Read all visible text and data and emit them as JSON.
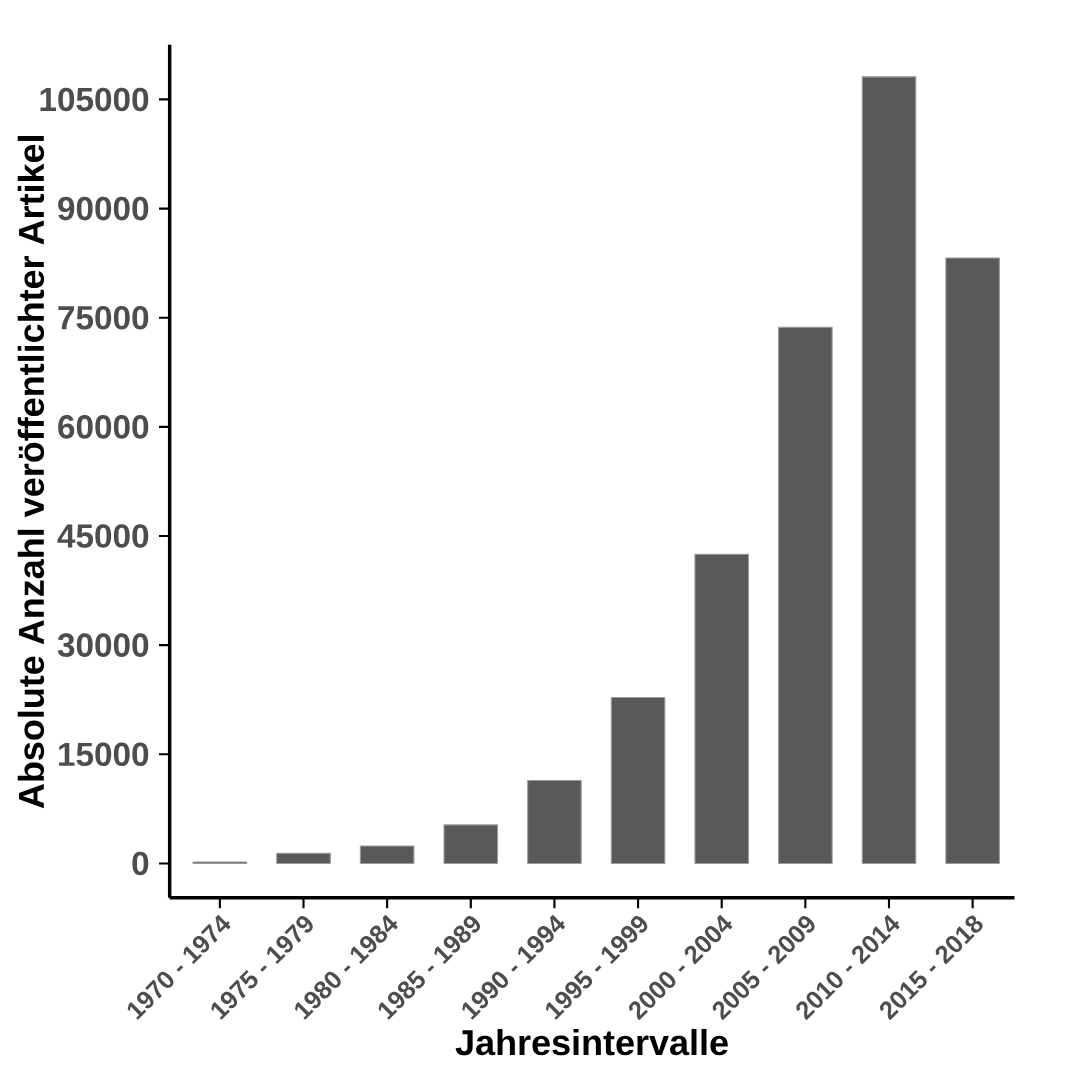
{
  "chart_data": {
    "type": "bar",
    "xlabel": "Jahresintervalle",
    "ylabel": "Absolute Anzahl veröffentlichter Artikel",
    "categories": [
      "1970 - 1974",
      "1975 - 1979",
      "1980 - 1984",
      "1985 - 1989",
      "1990 - 1994",
      "1995 - 1999",
      "2000 - 2004",
      "2005 - 2009",
      "2010 - 2014",
      "2015 - 2018"
    ],
    "values": [
      200,
      1400,
      2400,
      5300,
      11400,
      22800,
      42500,
      73700,
      108100,
      83200
    ],
    "color": "#595959",
    "ylim": [
      -4700,
      112500
    ],
    "yticks": [
      0,
      15000,
      30000,
      45000,
      60000,
      75000,
      90000,
      105000
    ],
    "grid": false
  }
}
